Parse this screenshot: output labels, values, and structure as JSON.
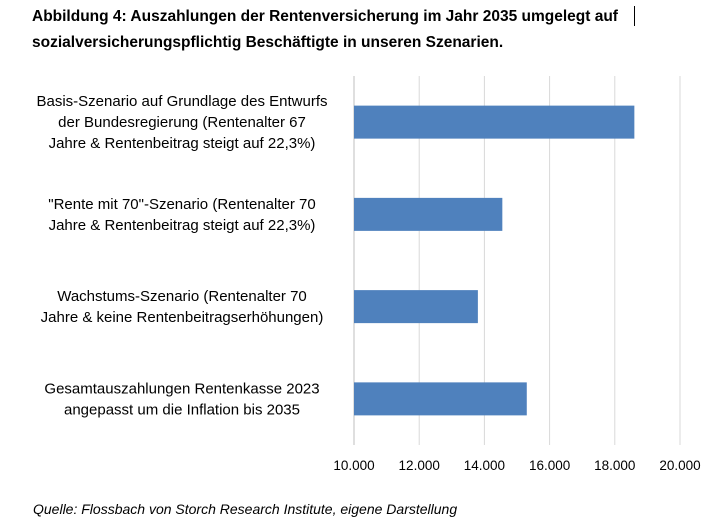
{
  "title_line1": "Abbildung 4: Auszahlungen der Rentenversicherung im Jahr 2035 umgelegt auf",
  "title_line2": "sozialversicherungspflichtig Beschäftigte in unseren Szenarien.",
  "source": "Quelle: Flossbach von Storch Research Institute, eigene Darstellung",
  "chart_data": {
    "type": "bar",
    "orientation": "horizontal",
    "categories": [
      [
        "Basis-Szenario auf Grundlage des Entwurfs",
        "der Bundesregierung (Rentenalter 67",
        "Jahre & Rentenbeitrag steigt auf 22,3%)"
      ],
      [
        "\"Rente mit 70\"-Szenario (Rentenalter 70",
        "Jahre & Rentenbeitrag steigt auf 22,3%)"
      ],
      [
        "Wachstums-Szenario (Rentenalter 70",
        "Jahre & keine Rentenbeitragserhöhungen)"
      ],
      [
        "Gesamtauszahlungen Rentenkasse 2023",
        "angepasst um die Inflation bis 2035"
      ]
    ],
    "values": [
      18600,
      14550,
      13800,
      15300
    ],
    "xlim": [
      10000,
      20000
    ],
    "x_ticks": [
      "10.000",
      "12.000",
      "14.000",
      "16.000",
      "18.000",
      "20.000"
    ],
    "x_tick_values": [
      10000,
      12000,
      14000,
      16000,
      18000,
      20000
    ],
    "grid": true,
    "bar_color": "#4f81bd",
    "grid_color": "#d9d9d9"
  }
}
